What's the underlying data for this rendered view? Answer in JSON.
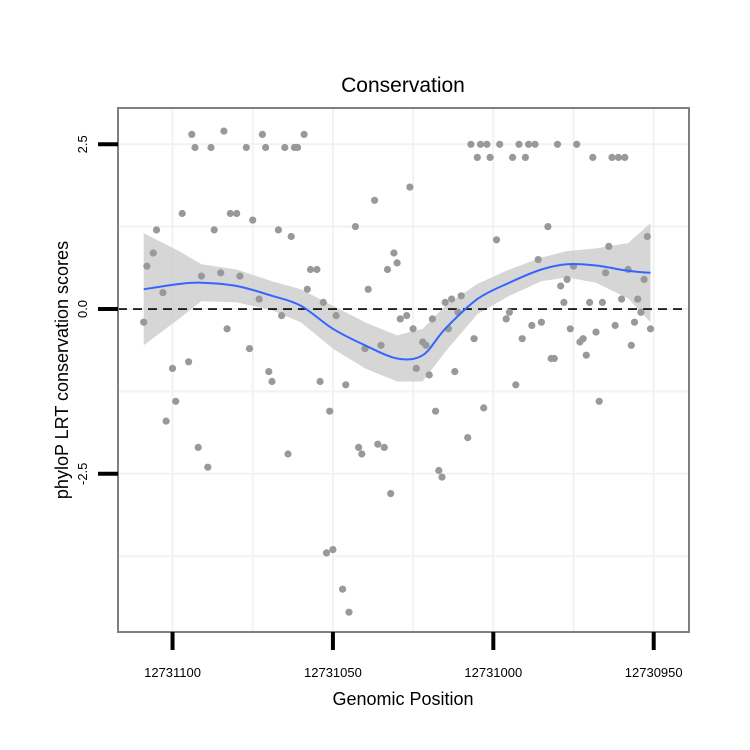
{
  "chart_data": {
    "type": "scatter",
    "title": "Conservation",
    "xlabel": "Genomic Position",
    "ylabel": "phyloP LRT conservation scores",
    "x_reversed": true,
    "xlim": [
      12731117,
      12730939
    ],
    "ylim": [
      -4.9,
      3.05
    ],
    "x_ticks": [
      12731100,
      12731050,
      12731000,
      12730950
    ],
    "x_tick_labels": [
      "12731100",
      "12731050",
      "12731000",
      "12730950"
    ],
    "y_ticks": [
      2.5,
      0.0,
      -2.5
    ],
    "y_tick_labels": [
      "2.5",
      "0.0",
      "-2.5"
    ],
    "reference_line": {
      "y": 0,
      "style": "dashed"
    },
    "grid": true,
    "legend": "none",
    "colors": {
      "points": "#999999",
      "smooth_line": "#3366FF",
      "ribbon": "#cccccc",
      "panel_border": "#7f7f7f",
      "grid": "#f2f2f2"
    },
    "points": [
      [
        12731109,
        -0.2
      ],
      [
        12731108,
        0.65
      ],
      [
        12731106,
        0.85
      ],
      [
        12731105,
        1.2
      ],
      [
        12731103,
        0.25
      ],
      [
        12731102,
        -1.7
      ],
      [
        12731100,
        -0.9
      ],
      [
        12731099,
        -1.4
      ],
      [
        12731097,
        1.45
      ],
      [
        12731095,
        -0.8
      ],
      [
        12731094,
        2.65
      ],
      [
        12731093,
        2.45
      ],
      [
        12731092,
        -2.1
      ],
      [
        12731091,
        0.5
      ],
      [
        12731089,
        -2.4
      ],
      [
        12731088,
        2.45
      ],
      [
        12731087,
        1.2
      ],
      [
        12731085,
        0.55
      ],
      [
        12731084,
        2.7
      ],
      [
        12731083,
        -0.3
      ],
      [
        12731082,
        1.45
      ],
      [
        12731080,
        1.45
      ],
      [
        12731079,
        0.5
      ],
      [
        12731077,
        2.45
      ],
      [
        12731076,
        -0.6
      ],
      [
        12731075,
        1.35
      ],
      [
        12731073,
        0.15
      ],
      [
        12731072,
        2.65
      ],
      [
        12731071,
        2.45
      ],
      [
        12731070,
        -0.95
      ],
      [
        12731069,
        -1.1
      ],
      [
        12731067,
        1.2
      ],
      [
        12731066,
        -0.1
      ],
      [
        12731065,
        2.45
      ],
      [
        12731064,
        -2.2
      ],
      [
        12731063,
        1.1
      ],
      [
        12731062,
        2.45
      ],
      [
        12731061,
        2.45
      ],
      [
        12731059,
        2.65
      ],
      [
        12731058,
        0.3
      ],
      [
        12731057,
        0.6
      ],
      [
        12731055,
        0.6
      ],
      [
        12731054,
        -1.1
      ],
      [
        12731053,
        0.1
      ],
      [
        12731052,
        -3.7
      ],
      [
        12731051,
        -1.55
      ],
      [
        12731050,
        -3.65
      ],
      [
        12731049,
        -0.1
      ],
      [
        12731047,
        -4.25
      ],
      [
        12731046,
        -1.15
      ],
      [
        12731045,
        -4.6
      ],
      [
        12731043,
        1.25
      ],
      [
        12731042,
        -2.1
      ],
      [
        12731041,
        -2.2
      ],
      [
        12731040,
        -0.6
      ],
      [
        12731039,
        0.3
      ],
      [
        12731037,
        1.65
      ],
      [
        12731036,
        -2.05
      ],
      [
        12731035,
        -0.55
      ],
      [
        12731034,
        -2.1
      ],
      [
        12731033,
        0.6
      ],
      [
        12731032,
        -2.8
      ],
      [
        12731031,
        0.85
      ],
      [
        12731030,
        0.7
      ],
      [
        12731029,
        -0.15
      ],
      [
        12731027,
        -0.1
      ],
      [
        12731026,
        1.85
      ],
      [
        12731025,
        -0.3
      ],
      [
        12731024,
        -0.9
      ],
      [
        12731022,
        -0.5
      ],
      [
        12731021,
        -0.55
      ],
      [
        12731020,
        -1.0
      ],
      [
        12731019,
        -0.15
      ],
      [
        12731018,
        -1.55
      ],
      [
        12731017,
        -2.45
      ],
      [
        12731016,
        -2.55
      ],
      [
        12731015,
        0.1
      ],
      [
        12731014,
        -0.3
      ],
      [
        12731013,
        0.15
      ],
      [
        12731012,
        -0.95
      ],
      [
        12731011,
        -0.05
      ],
      [
        12731010,
        0.2
      ],
      [
        12731008,
        -1.95
      ],
      [
        12731007,
        2.5
      ],
      [
        12731006,
        -0.45
      ],
      [
        12731005,
        2.3
      ],
      [
        12731004,
        2.5
      ],
      [
        12731003,
        -1.5
      ],
      [
        12731002,
        2.5
      ],
      [
        12731001,
        2.3
      ],
      [
        12730999,
        1.05
      ],
      [
        12730998,
        2.5
      ],
      [
        12730996,
        -0.15
      ],
      [
        12730995,
        -0.05
      ],
      [
        12730994,
        2.3
      ],
      [
        12730993,
        -1.15
      ],
      [
        12730992,
        2.5
      ],
      [
        12730991,
        -0.45
      ],
      [
        12730990,
        2.3
      ],
      [
        12730989,
        2.5
      ],
      [
        12730988,
        -0.25
      ],
      [
        12730987,
        2.5
      ],
      [
        12730986,
        0.75
      ],
      [
        12730985,
        -0.2
      ],
      [
        12730983,
        1.25
      ],
      [
        12730982,
        -0.75
      ],
      [
        12730981,
        -0.75
      ],
      [
        12730980,
        2.5
      ],
      [
        12730979,
        0.35
      ],
      [
        12730978,
        0.1
      ],
      [
        12730977,
        0.45
      ],
      [
        12730976,
        -0.3
      ],
      [
        12730975,
        0.65
      ],
      [
        12730974,
        2.5
      ],
      [
        12730973,
        -0.5
      ],
      [
        12730972,
        -0.45
      ],
      [
        12730971,
        -0.7
      ],
      [
        12730970,
        0.1
      ],
      [
        12730969,
        2.3
      ],
      [
        12730968,
        -0.35
      ],
      [
        12730967,
        -1.4
      ],
      [
        12730966,
        0.1
      ],
      [
        12730965,
        0.55
      ],
      [
        12730964,
        0.95
      ],
      [
        12730963,
        2.3
      ],
      [
        12730962,
        -0.25
      ],
      [
        12730961,
        2.3
      ],
      [
        12730960,
        0.15
      ],
      [
        12730959,
        2.3
      ],
      [
        12730958,
        0.6
      ],
      [
        12730957,
        -0.55
      ],
      [
        12730956,
        -0.2
      ],
      [
        12730955,
        0.15
      ],
      [
        12730954,
        -0.05
      ],
      [
        12730953,
        0.45
      ],
      [
        12730952,
        1.1
      ],
      [
        12730951,
        -0.3
      ]
    ],
    "smooth_fit": [
      [
        12731109,
        0.3
      ],
      [
        12731098,
        0.38
      ],
      [
        12731091,
        0.4
      ],
      [
        12731080,
        0.35
      ],
      [
        12731069,
        0.2
      ],
      [
        12731060,
        0.05
      ],
      [
        12731050,
        -0.3
      ],
      [
        12731040,
        -0.55
      ],
      [
        12731030,
        -0.75
      ],
      [
        12731022,
        -0.7
      ],
      [
        12731015,
        -0.3
      ],
      [
        12731005,
        0.15
      ],
      [
        12730995,
        0.4
      ],
      [
        12730985,
        0.6
      ],
      [
        12730977,
        0.68
      ],
      [
        12730968,
        0.66
      ],
      [
        12730958,
        0.58
      ],
      [
        12730951,
        0.55
      ]
    ],
    "confidence_band": {
      "upper": [
        1.15,
        0.88,
        0.68,
        0.6,
        0.42,
        0.3,
        0.05,
        -0.2,
        -0.4,
        -0.3,
        0.05,
        0.38,
        0.6,
        0.78,
        0.88,
        0.92,
        1.0,
        1.3
      ],
      "lower": [
        -0.55,
        -0.15,
        0.12,
        0.1,
        -0.02,
        -0.2,
        -0.6,
        -0.9,
        -1.1,
        -1.1,
        -0.65,
        -0.08,
        0.2,
        0.42,
        0.48,
        0.4,
        0.16,
        -0.2
      ]
    }
  }
}
